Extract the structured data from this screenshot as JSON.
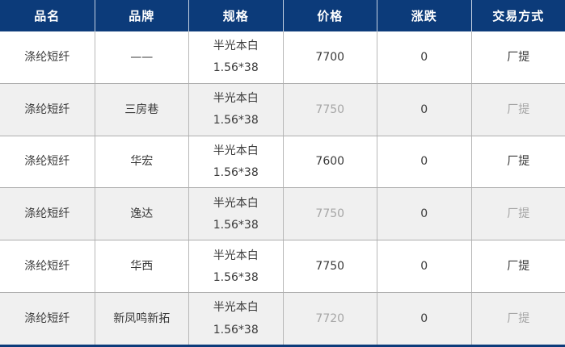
{
  "colors": {
    "header_bg": "#0c3b7a",
    "header_text": "#ffffff",
    "header_divider": "#c3d0e2",
    "row_bg": "#ffffff",
    "row_alt_bg": "#f0f0f0",
    "row_border": "#aeaeae",
    "column_border": "#b8b8b8",
    "text": "#3a3a3a",
    "muted_text": "#a6a6a6",
    "bottom_bar": "#0c3b7a"
  },
  "table": {
    "headers": [
      "品名",
      "品牌",
      "规格",
      "价格",
      "涨跌",
      "交易方式"
    ],
    "rows": [
      {
        "product": "涤纶短纤",
        "brand": "——",
        "spec_line1": "半光本白",
        "spec_line2": "1.56*38",
        "price": "7700",
        "change": "0",
        "trade": "厂提"
      },
      {
        "product": "涤纶短纤",
        "brand": "三房巷",
        "spec_line1": "半光本白",
        "spec_line2": "1.56*38",
        "price": "7750",
        "change": "0",
        "trade": "厂提"
      },
      {
        "product": "涤纶短纤",
        "brand": "华宏",
        "spec_line1": "半光本白",
        "spec_line2": "1.56*38",
        "price": "7600",
        "change": "0",
        "trade": "厂提"
      },
      {
        "product": "涤纶短纤",
        "brand": "逸达",
        "spec_line1": "半光本白",
        "spec_line2": "1.56*38",
        "price": "7750",
        "change": "0",
        "trade": "厂提"
      },
      {
        "product": "涤纶短纤",
        "brand": "华西",
        "spec_line1": "半光本白",
        "spec_line2": "1.56*38",
        "price": "7750",
        "change": "0",
        "trade": "厂提"
      },
      {
        "product": "涤纶短纤",
        "brand": "新凤鸣新拓",
        "spec_line1": "半光本白",
        "spec_line2": "1.56*38",
        "price": "7720",
        "change": "0",
        "trade": "厂提"
      }
    ]
  },
  "chart_data": {
    "type": "table",
    "columns": [
      "品名",
      "品牌",
      "规格",
      "价格",
      "涨跌",
      "交易方式"
    ],
    "rows": [
      [
        "涤纶短纤",
        "——",
        "半光本白 1.56*38",
        "7700",
        "0",
        "厂提"
      ],
      [
        "涤纶短纤",
        "三房巷",
        "半光本白 1.56*38",
        "7750",
        "0",
        "厂提"
      ],
      [
        "涤纶短纤",
        "华宏",
        "半光本白 1.56*38",
        "7600",
        "0",
        "厂提"
      ],
      [
        "涤纶短纤",
        "逸达",
        "半光本白 1.56*38",
        "7750",
        "0",
        "厂提"
      ],
      [
        "涤纶短纤",
        "华西",
        "半光本白 1.56*38",
        "7750",
        "0",
        "厂提"
      ],
      [
        "涤纶短纤",
        "新凤鸣新拓",
        "半光本白 1.56*38",
        "7720",
        "0",
        "厂提"
      ]
    ]
  }
}
